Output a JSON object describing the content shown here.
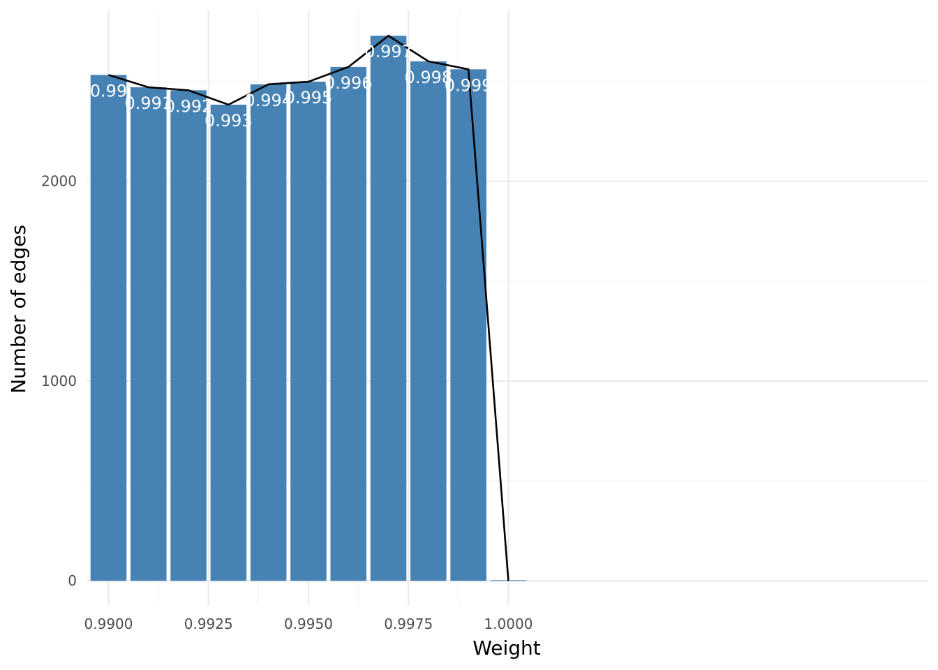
{
  "chart_data": {
    "type": "bar",
    "xlabel": "Weight",
    "ylabel": "Number of edges",
    "x": [
      0.99,
      0.991,
      0.992,
      0.993,
      0.994,
      0.995,
      0.996,
      0.997,
      0.998,
      0.999,
      1.0
    ],
    "values": [
      2532,
      2470,
      2455,
      2383,
      2485,
      2498,
      2572,
      2728,
      2600,
      2560,
      3
    ],
    "labels": [
      "0.99",
      "0.991",
      "0.992",
      "0.993",
      "0.994",
      "0.995",
      "0.996",
      "0.997",
      "0.998",
      "0.999",
      ""
    ],
    "line": {
      "x": [
        0.99,
        0.991,
        0.992,
        0.993,
        0.994,
        0.995,
        0.996,
        0.997,
        0.998,
        0.999,
        1.0
      ],
      "y": [
        2532,
        2470,
        2455,
        2383,
        2485,
        2498,
        2572,
        2728,
        2600,
        2560,
        0
      ]
    },
    "xticks": [
      0.99,
      0.9925,
      0.995,
      0.9975,
      1.0
    ],
    "xtick_labels": [
      "0.9900",
      "0.9925",
      "0.9950",
      "0.9975",
      "1.0000"
    ],
    "yticks": [
      0,
      1000,
      2000
    ],
    "ytick_labels": [
      "0",
      "1000",
      "2000"
    ],
    "xlim": [
      0.98945,
      1.0105
    ],
    "ylim": [
      -125,
      2858
    ],
    "grid": true,
    "colors": {
      "bar": "#4682B4",
      "line": "#000000",
      "bar_label": "#FFFFFF"
    }
  }
}
